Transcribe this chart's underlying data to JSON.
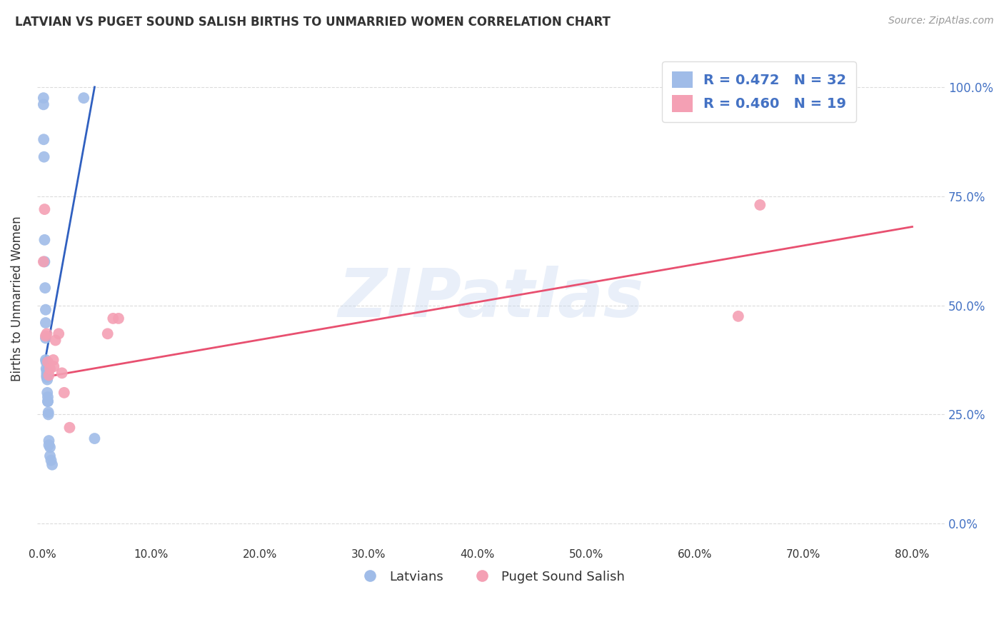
{
  "title": "LATVIAN VS PUGET SOUND SALISH BIRTHS TO UNMARRIED WOMEN CORRELATION CHART",
  "source": "Source: ZipAtlas.com",
  "ylabel": "Births to Unmarried Women",
  "xlabel_ticks": [
    "0.0%",
    "10.0%",
    "20.0%",
    "30.0%",
    "40.0%",
    "50.0%",
    "60.0%",
    "70.0%",
    "80.0%"
  ],
  "xlabel_vals": [
    0.0,
    0.1,
    0.2,
    0.3,
    0.4,
    0.5,
    0.6,
    0.7,
    0.8
  ],
  "ylabel_ticks": [
    "0.0%",
    "25.0%",
    "50.0%",
    "75.0%",
    "100.0%"
  ],
  "ylabel_vals": [
    0.0,
    0.25,
    0.5,
    0.75,
    1.0
  ],
  "xlim": [
    -0.005,
    0.83
  ],
  "ylim": [
    -0.05,
    1.08
  ],
  "latvian_R": 0.472,
  "latvian_N": 32,
  "puget_R": 0.46,
  "puget_N": 19,
  "latvian_color": "#a0bce8",
  "puget_color": "#f4a0b4",
  "latvian_line_color": "#3060c0",
  "puget_line_color": "#e85070",
  "legend_color": "#4472c4",
  "watermark": "ZIPatlas",
  "background_color": "#ffffff",
  "grid_color": "#cccccc",
  "title_color": "#333333",
  "axis_label_color": "#333333",
  "right_tick_color": "#4472c4",
  "latvian_x": [
    0.001,
    0.001,
    0.0012,
    0.0015,
    0.002,
    0.002,
    0.0025,
    0.003,
    0.003,
    0.003,
    0.003,
    0.0035,
    0.0035,
    0.004,
    0.004,
    0.004,
    0.004,
    0.0045,
    0.0045,
    0.005,
    0.005,
    0.005,
    0.0055,
    0.0055,
    0.006,
    0.006,
    0.007,
    0.007,
    0.008,
    0.009,
    0.038,
    0.048
  ],
  "latvian_y": [
    0.975,
    0.96,
    0.88,
    0.84,
    0.65,
    0.6,
    0.54,
    0.49,
    0.46,
    0.425,
    0.375,
    0.37,
    0.355,
    0.35,
    0.345,
    0.34,
    0.335,
    0.33,
    0.3,
    0.29,
    0.28,
    0.28,
    0.255,
    0.25,
    0.19,
    0.18,
    0.175,
    0.155,
    0.145,
    0.135,
    0.975,
    0.195
  ],
  "puget_x": [
    0.001,
    0.002,
    0.003,
    0.004,
    0.005,
    0.006,
    0.007,
    0.01,
    0.0105,
    0.012,
    0.015,
    0.018,
    0.02,
    0.025,
    0.06,
    0.065,
    0.07,
    0.64,
    0.66
  ],
  "puget_y": [
    0.6,
    0.72,
    0.43,
    0.435,
    0.37,
    0.34,
    0.355,
    0.375,
    0.36,
    0.42,
    0.435,
    0.345,
    0.3,
    0.22,
    0.435,
    0.47,
    0.47,
    0.475,
    0.73
  ],
  "lat_line_x": [
    0.0,
    0.048
  ],
  "lat_line_y": [
    0.34,
    1.0
  ],
  "pug_line_x": [
    0.0,
    0.8
  ],
  "pug_line_y": [
    0.335,
    0.68
  ]
}
